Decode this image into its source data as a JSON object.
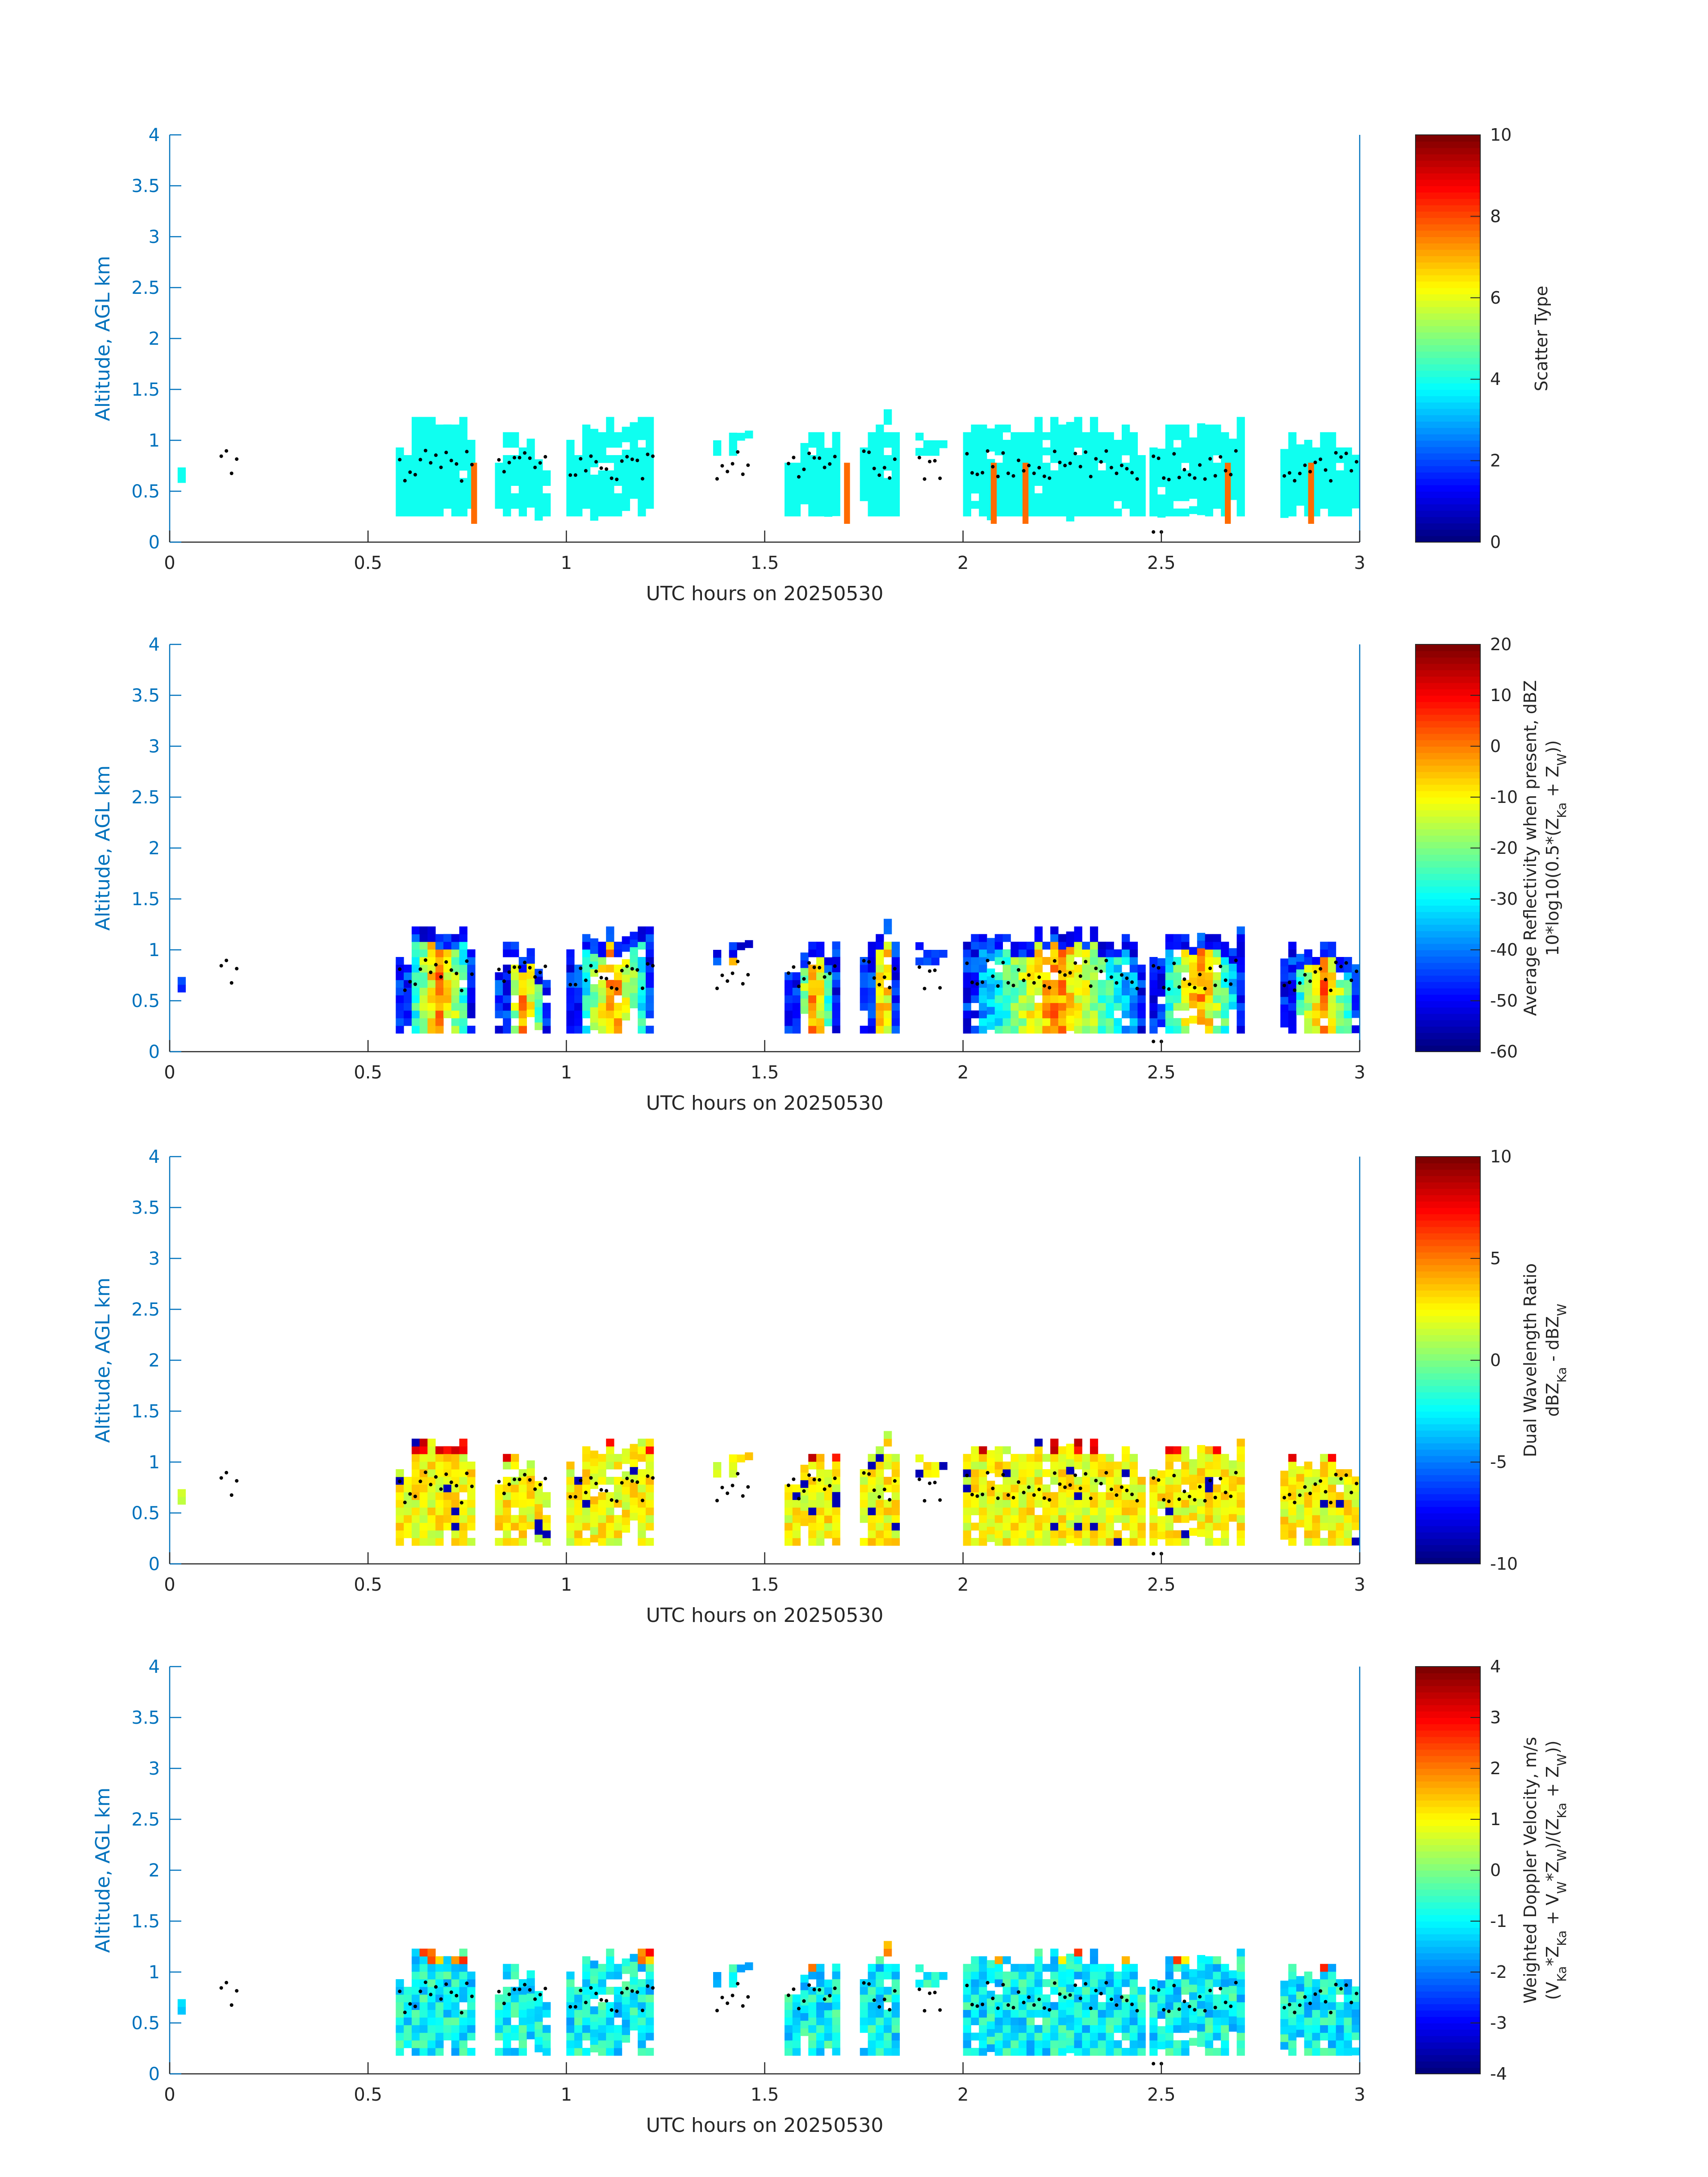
{
  "figure": {
    "panels": [
      {
        "id": "scatter",
        "xlabel": "UTC hours on 20250530",
        "ylabel": "Altitude, AGL km",
        "xticks": [
          0,
          0.5,
          1,
          1.5,
          2,
          2.5,
          3
        ],
        "yticks": [
          0,
          0.5,
          1,
          1.5,
          2,
          2.5,
          3,
          3.5,
          4
        ],
        "xlim": [
          0,
          3
        ],
        "ylim": [
          0,
          4
        ],
        "colorbar": {
          "label": "Scatter Type",
          "label2": "",
          "range": [
            0,
            10
          ],
          "ticks": [
            0,
            2,
            4,
            6,
            8,
            10
          ],
          "colormap": "jet"
        },
        "cell_color_value": 3.9,
        "accent_value": 7.7
      },
      {
        "id": "reflectivity",
        "xlabel": "UTC hours on 20250530",
        "ylabel": "Altitude, AGL km",
        "xticks": [
          0,
          0.5,
          1,
          1.5,
          2,
          2.5,
          3
        ],
        "yticks": [
          0,
          0.5,
          1,
          1.5,
          2,
          2.5,
          3,
          3.5,
          4
        ],
        "xlim": [
          0,
          3
        ],
        "ylim": [
          0,
          4
        ],
        "colorbar": {
          "label": "Average Reflectivity when present, dBZ",
          "label2": "10*log10(0.5*(Z",
          "label2_sub1": "Ka",
          "label2_mid": " + Z",
          "label2_sub2": "W",
          "label2_end": "))",
          "range": [
            -60,
            20
          ],
          "ticks": [
            -60,
            -50,
            -40,
            -30,
            -20,
            -10,
            0,
            10,
            20
          ],
          "colormap": "jet"
        }
      },
      {
        "id": "dwr",
        "xlabel": "UTC hours on 20250530",
        "ylabel": "Altitude, AGL km",
        "xticks": [
          0,
          0.5,
          1,
          1.5,
          2,
          2.5,
          3
        ],
        "yticks": [
          0,
          0.5,
          1,
          1.5,
          2,
          2.5,
          3,
          3.5,
          4
        ],
        "xlim": [
          0,
          3
        ],
        "ylim": [
          0,
          4
        ],
        "colorbar": {
          "label": "Dual Wavelength Ratio",
          "label2": "dBZ",
          "label2_sub1": "Ka",
          "label2_mid": " - dBZ",
          "label2_sub2": "W",
          "label2_end": "",
          "range": [
            -10,
            10
          ],
          "ticks": [
            -10,
            -5,
            0,
            5,
            10
          ],
          "colormap": "jet"
        }
      },
      {
        "id": "doppler",
        "xlabel": "UTC hours on 20250530",
        "ylabel": "Altitude, AGL km",
        "xticks": [
          0,
          0.5,
          1,
          1.5,
          2,
          2.5,
          3
        ],
        "yticks": [
          0,
          0.5,
          1,
          1.5,
          2,
          2.5,
          3,
          3.5,
          4
        ],
        "xlim": [
          0,
          3
        ],
        "ylim": [
          0,
          4
        ],
        "colorbar": {
          "label": "Weighted Doppler Velocity, m/s",
          "label2": "(V",
          "label2_sub1": "Ka",
          "label2_mid": "*Z",
          "label2_sub2": "Ka",
          "label2_mid2": " + V",
          "label2_sub3": "W",
          "label2_mid3": "*Z",
          "label2_sub4": "W",
          "label2_mid4": ")/(Z",
          "label2_sub5": "Ka",
          "label2_mid5": " + Z",
          "label2_sub6": "W",
          "label2_end": "))",
          "range": [
            -4,
            4
          ],
          "ticks": [
            -4,
            -3,
            -2,
            -1,
            0,
            1,
            2,
            3,
            4
          ],
          "colormap": "jet"
        }
      }
    ]
  },
  "chart_data": [
    {
      "type": "heatmap",
      "title": "",
      "xlabel": "UTC hours on 20250530",
      "ylabel": "Altitude, AGL km",
      "xlim": [
        0,
        3
      ],
      "ylim": [
        0,
        4
      ],
      "colorbar_label": "Scatter Type",
      "color_range": [
        0,
        10
      ],
      "cloud_segments": [
        {
          "x0": 0.02,
          "x1": 0.03,
          "bottom": 0.55,
          "top": 0.78
        },
        {
          "x0": 0.12,
          "x1": 0.18,
          "bottom": 0.55,
          "top": 0.78
        },
        {
          "x0": 0.57,
          "x1": 0.77,
          "bottom": 0.18,
          "top": 1.2
        },
        {
          "x0": 0.82,
          "x1": 0.95,
          "bottom": 0.18,
          "top": 1.08
        },
        {
          "x0": 1.0,
          "x1": 1.22,
          "bottom": 0.18,
          "top": 1.2
        },
        {
          "x0": 1.37,
          "x1": 1.47,
          "bottom": 0.85,
          "top": 1.13
        },
        {
          "x0": 1.55,
          "x1": 1.68,
          "bottom": 0.18,
          "top": 1.13
        },
        {
          "x0": 1.74,
          "x1": 1.84,
          "bottom": 0.18,
          "top": 1.25
        },
        {
          "x0": 1.88,
          "x1": 1.95,
          "bottom": 0.85,
          "top": 1.08
        },
        {
          "x0": 2.0,
          "x1": 2.45,
          "bottom": 0.18,
          "top": 1.2
        },
        {
          "x0": 2.47,
          "x1": 2.7,
          "bottom": 0.18,
          "top": 1.2
        },
        {
          "x0": 2.8,
          "x1": 3.0,
          "bottom": 0.18,
          "top": 1.08
        }
      ],
      "cloud_base_dots_km": "approx 0.5–0.9 km along cloud segments"
    },
    {
      "type": "heatmap",
      "title": "",
      "xlabel": "UTC hours on 20250530",
      "ylabel": "Altitude, AGL km",
      "xlim": [
        0,
        3
      ],
      "ylim": [
        0,
        4
      ],
      "colorbar_label": "Average Reflectivity when present, dBZ",
      "color_range": [
        -60,
        20
      ],
      "max_value_in_cores": 5,
      "min_value_at_edges": -55
    },
    {
      "type": "heatmap",
      "title": "",
      "xlabel": "UTC hours on 20250530",
      "ylabel": "Altitude, AGL km",
      "xlim": [
        0,
        3
      ],
      "ylim": [
        0,
        4
      ],
      "colorbar_label": "Dual Wavelength Ratio",
      "color_range": [
        -10,
        10
      ],
      "typical_value": 3
    },
    {
      "type": "heatmap",
      "title": "",
      "xlabel": "UTC hours on 20250530",
      "ylabel": "Altitude, AGL km",
      "xlim": [
        0,
        3
      ],
      "ylim": [
        0,
        4
      ],
      "colorbar_label": "Weighted Doppler Velocity, m/s",
      "color_range": [
        -4,
        4
      ],
      "typical_value": -1
    }
  ]
}
